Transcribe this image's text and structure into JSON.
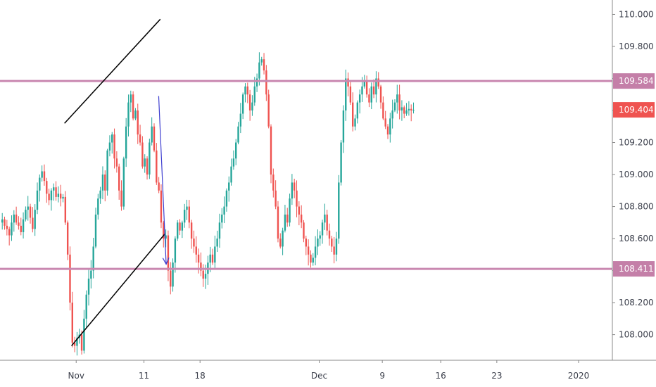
{
  "chart_data": {
    "type": "candlestick",
    "title": "",
    "xlabel": "",
    "ylabel": "",
    "ylim": [
      107.84,
      110.09
    ],
    "y_ticks": [
      "110.000",
      "109.800",
      "109.600",
      "109.400",
      "109.200",
      "109.000",
      "108.800",
      "108.600",
      "108.400",
      "108.200",
      "108.000"
    ],
    "x_ticks": [
      "Nov",
      "11",
      "18",
      "Dec",
      "9",
      "16",
      "23",
      "2020"
    ],
    "grid": false,
    "colors": {
      "up": "#26a69a",
      "down": "#ef5350",
      "level": "#c988b0",
      "trendline": "#000000",
      "arrow": "#3f3fd0",
      "last_price_badge": "#ef5350",
      "level_badge": "#c47fa8"
    },
    "horizontal_levels": [
      {
        "label": "109.584",
        "value": 109.584
      },
      {
        "label": "108.411",
        "value": 108.411
      }
    ],
    "last_price": {
      "label": "109.404",
      "value": 109.404
    },
    "trend_channel": {
      "upper": [
        [
          27,
          109.32
        ],
        [
          68,
          109.97
        ]
      ],
      "lower": [
        [
          30,
          107.93
        ],
        [
          70,
          108.63
        ]
      ]
    },
    "projection_arrow": {
      "from": [
        67.3,
        109.49
      ],
      "to": [
        70.5,
        108.44
      ]
    },
    "candle_closes": [
      108.72,
      108.68,
      108.66,
      108.62,
      108.7,
      108.75,
      108.7,
      108.68,
      108.64,
      108.72,
      108.78,
      108.8,
      108.73,
      108.66,
      108.78,
      108.9,
      108.98,
      109.02,
      108.96,
      108.88,
      108.84,
      108.9,
      108.92,
      108.86,
      108.88,
      108.85,
      108.86,
      108.7,
      108.5,
      108.2,
      107.95,
      107.93,
      107.98,
      108.0,
      107.9,
      108.1,
      108.25,
      108.35,
      108.4,
      108.55,
      108.75,
      108.85,
      108.9,
      109.0,
      108.9,
      109.15,
      109.2,
      109.25,
      109.1,
      109.05,
      108.9,
      108.8,
      109.1,
      109.3,
      109.45,
      109.5,
      109.35,
      109.4,
      109.25,
      109.2,
      109.05,
      109.1,
      109.0,
      109.2,
      109.3,
      109.15,
      108.95,
      108.9,
      108.7,
      108.6,
      108.62,
      108.4,
      108.3,
      108.45,
      108.6,
      108.7,
      108.65,
      108.7,
      108.78,
      108.8,
      108.7,
      108.6,
      108.55,
      108.5,
      108.45,
      108.4,
      108.35,
      108.38,
      108.45,
      108.5,
      108.45,
      108.55,
      108.6,
      108.7,
      108.75,
      108.8,
      108.9,
      108.95,
      109.05,
      109.1,
      109.2,
      109.3,
      109.38,
      109.5,
      109.55,
      109.5,
      109.4,
      109.45,
      109.55,
      109.6,
      109.7,
      109.72,
      109.65,
      109.5,
      109.3,
      109.0,
      108.9,
      108.8,
      108.6,
      108.55,
      108.65,
      108.75,
      108.7,
      108.85,
      108.95,
      108.9,
      108.8,
      108.75,
      108.7,
      108.6,
      108.55,
      108.5,
      108.45,
      108.48,
      108.55,
      108.6,
      108.62,
      108.7,
      108.75,
      108.65,
      108.6,
      108.55,
      108.5,
      108.6,
      108.95,
      109.2,
      109.4,
      109.6,
      109.55,
      109.45,
      109.3,
      109.35,
      109.45,
      109.5,
      109.55,
      109.58,
      109.5,
      109.45,
      109.55,
      109.5,
      109.6,
      109.55,
      109.45,
      109.35,
      109.3,
      109.25,
      109.35,
      109.4,
      109.45,
      109.5,
      109.4,
      109.42,
      109.38,
      109.4,
      109.41,
      109.4,
      109.404
    ]
  }
}
